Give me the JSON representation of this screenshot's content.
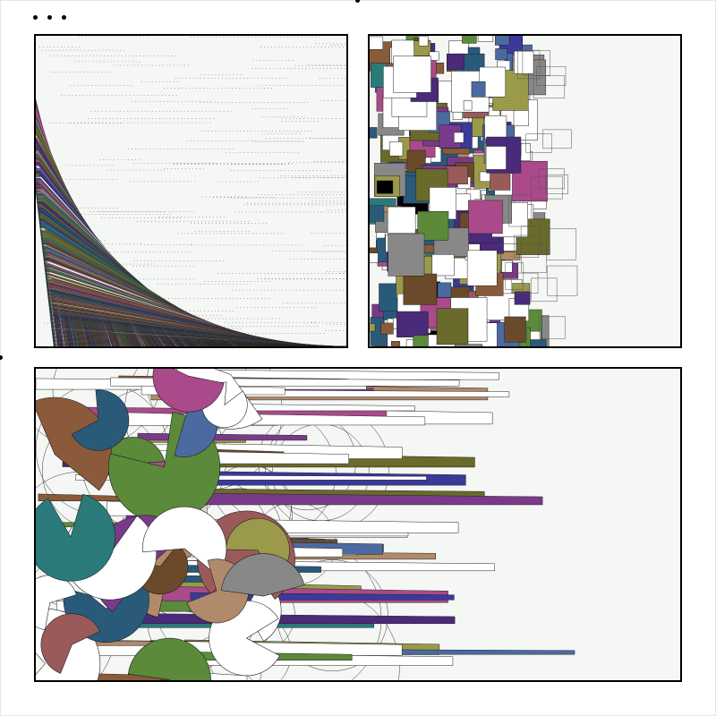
{
  "palette": [
    "#8a5a3a",
    "#3a3a9a",
    "#2a7a7a",
    "#6a6a2a",
    "#7a3a8a",
    "#4a6aa0",
    "#9a5a5a",
    "#5a8a3a",
    "#888888",
    "#2a5a7a",
    "#aa4a8a",
    "#9a9a4a",
    "#6a4a2a",
    "#ffffff",
    "#4a2a7a",
    "#b08a6a"
  ],
  "background": "#f5f7f5",
  "panels": [
    {
      "id": "diagonal-strips",
      "style": "strips"
    },
    {
      "id": "rect-cluster",
      "style": "rectangles"
    },
    {
      "id": "wedges-and-bars",
      "style": "wedges"
    }
  ]
}
